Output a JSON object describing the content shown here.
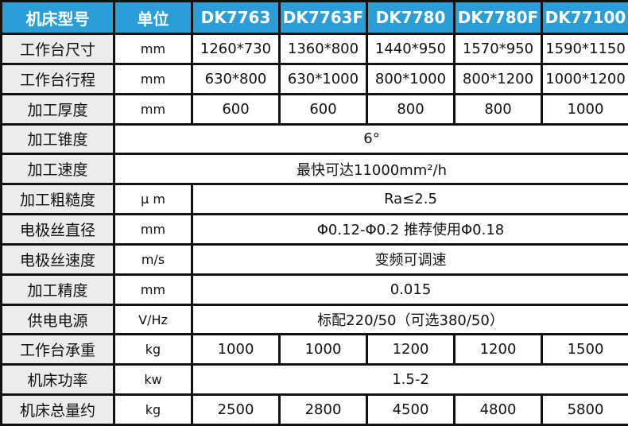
{
  "table": {
    "header": [
      "机床型号",
      "单位",
      "DK7763",
      "DK7763F",
      "DK7780",
      "DK7780F",
      "DK77100"
    ],
    "rows": [
      [
        "工作台尺寸",
        "mm",
        "1260*730",
        "1360*800",
        "1440*950",
        "1570*950",
        "1590*1150"
      ],
      [
        "工作台行程",
        "mm",
        "630*800",
        "630*1000",
        "800*1000",
        "800*1200",
        "1000*1200"
      ],
      [
        "加工厚度",
        "mm",
        "600",
        "600",
        "800",
        "800",
        "1000"
      ],
      [
        "加工锥度",
        "6°"
      ],
      [
        "加工速度",
        "最快可达11000mm²/h"
      ],
      [
        "加工粗糙度",
        "μ m",
        "Ra≤2.5"
      ],
      [
        "电极丝直径",
        "mm",
        "Φ0.12-Φ0.2 推荐使用Φ0.18"
      ],
      [
        "电极丝速度",
        "m/s",
        "变频可调速"
      ],
      [
        "加工精度",
        "mm",
        "0.015"
      ],
      [
        "供电电源",
        "V/Hz",
        "标配220/50（可选380/50）"
      ],
      [
        "工作台承重",
        "kg",
        "1000",
        "1000",
        "1200",
        "1200",
        "1500"
      ],
      [
        "机床功率",
        "kw",
        "1.5-2"
      ],
      [
        "机床总量约",
        "kg",
        "2500",
        "2800",
        "4500",
        "4800",
        "5800"
      ]
    ]
  }
}
